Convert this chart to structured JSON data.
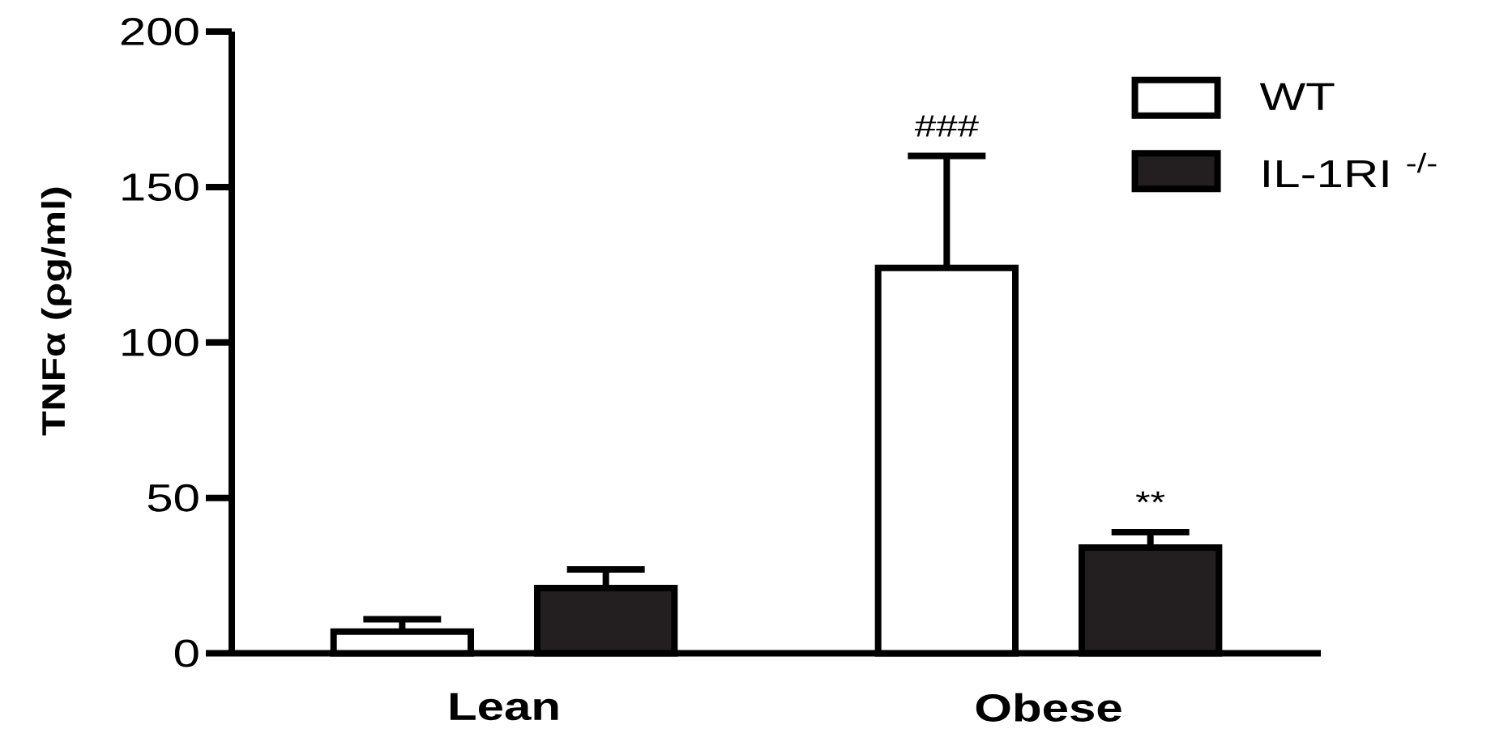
{
  "chart_data": {
    "type": "bar",
    "categories": [
      "Lean",
      "Obese"
    ],
    "ylabel": "TNFα (ρg/ml)",
    "ylim": [
      0,
      200
    ],
    "yticks": [
      0,
      50,
      100,
      150,
      200
    ],
    "series": [
      {
        "name": "WT",
        "color": "#ffffff",
        "values": [
          7,
          124
        ],
        "errors": [
          [
            7,
            11
          ],
          [
            124,
            160
          ]
        ]
      },
      {
        "name": "IL-1RI $^{-/-}$",
        "color": "#231f20",
        "values": [
          21,
          34
        ],
        "errors": [
          [
            21,
            27
          ],
          [
            34,
            39
          ]
        ]
      }
    ],
    "annotations": [
      "###",
      "**"
    ],
    "legend": "top right"
  }
}
